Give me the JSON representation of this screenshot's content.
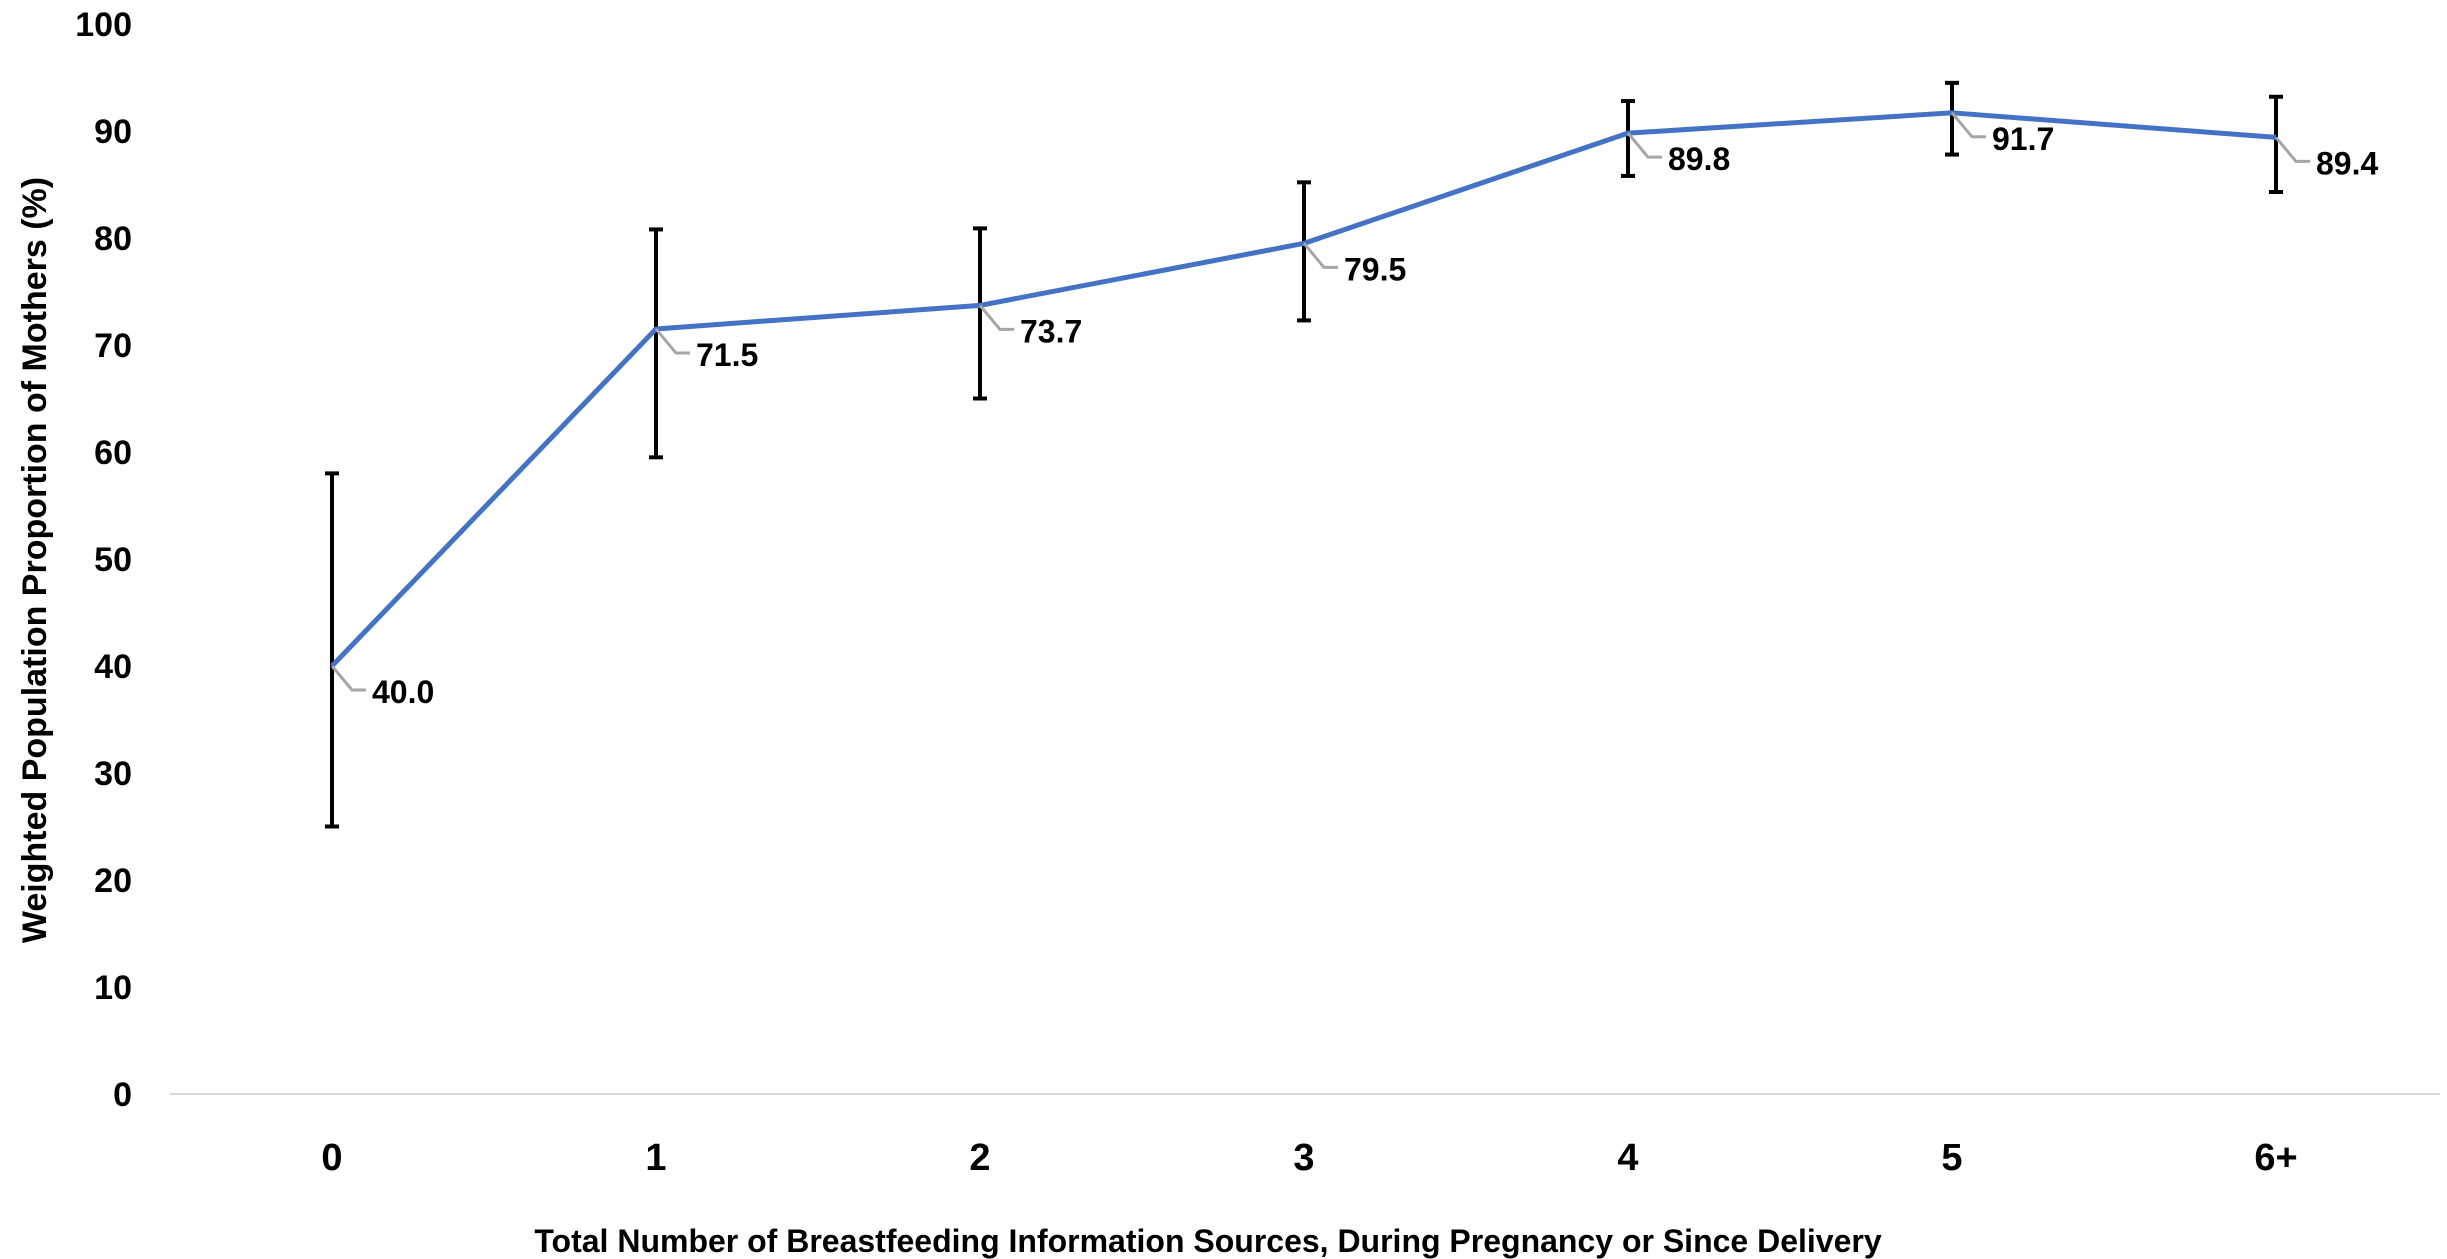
{
  "chart_data": {
    "type": "line",
    "title": "",
    "xlabel": "Total Number of Breastfeeding Information Sources, During Pregnancy or Since Delivery",
    "ylabel": "Weighted Population Proportion of Mothers (%)",
    "categories": [
      "0",
      "1",
      "2",
      "3",
      "4",
      "5",
      "6+"
    ],
    "series": [
      {
        "values": [
          40.0,
          71.5,
          73.7,
          79.5,
          89.8,
          91.7,
          89.4
        ],
        "data_labels": [
          "40.0",
          "71.5",
          "73.7",
          "79.5",
          "89.8",
          "91.7",
          "89.4"
        ],
        "error_low": [
          25.0,
          59.5,
          65.0,
          72.3,
          85.8,
          87.8,
          84.3
        ],
        "error_high": [
          58.0,
          80.8,
          80.9,
          85.2,
          92.8,
          94.5,
          93.2
        ],
        "color": "#4472C4"
      }
    ],
    "ylim": [
      0,
      100
    ],
    "yticks": [
      "0",
      "10",
      "20",
      "30",
      "40",
      "50",
      "60",
      "70",
      "80",
      "90",
      "100"
    ],
    "grid": false,
    "legend": "none",
    "colors": {
      "line": "#4472C4",
      "error_bar": "#000000",
      "leader_line": "#A6A6A6",
      "axis_line": "#D9D9D9"
    }
  }
}
